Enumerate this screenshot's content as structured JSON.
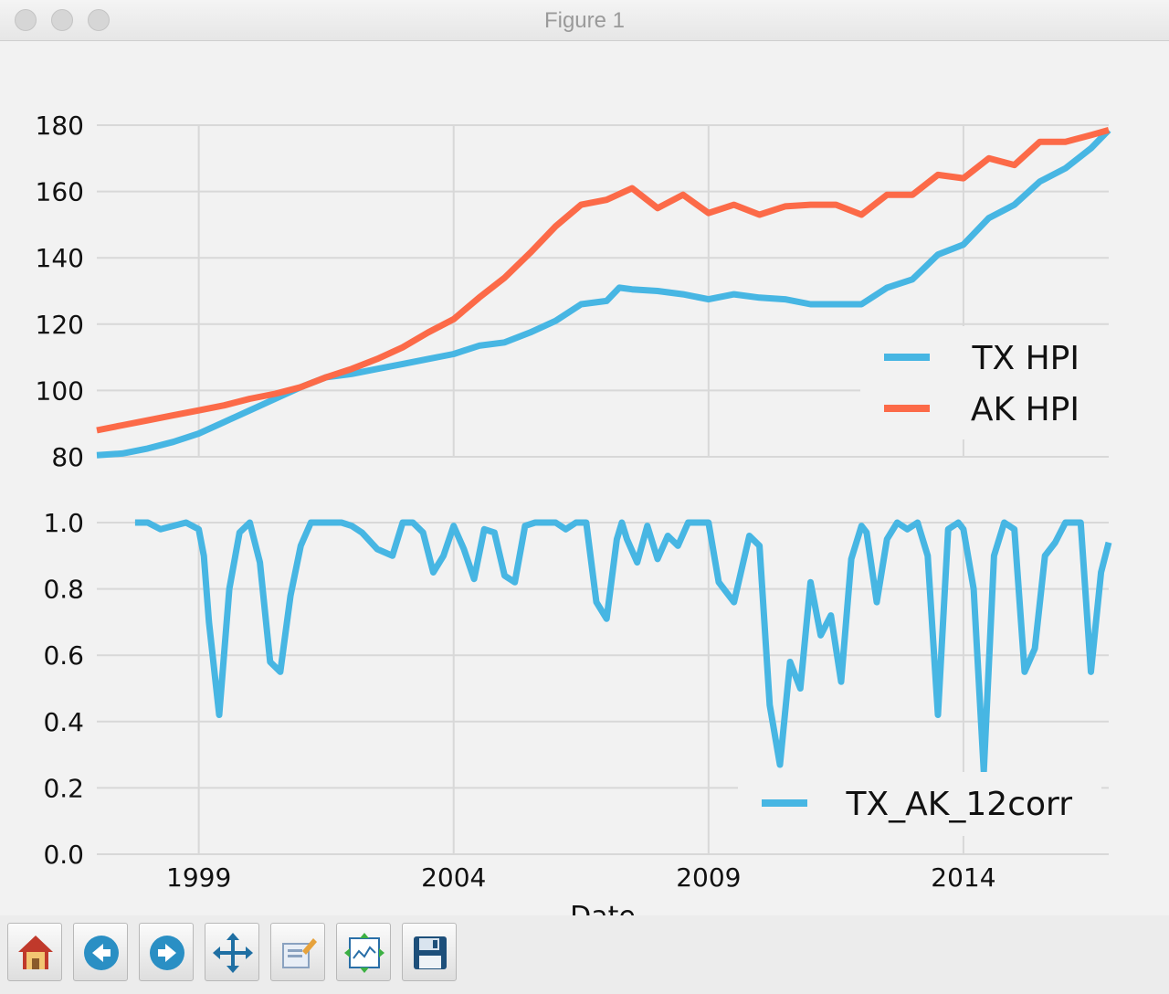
{
  "window": {
    "title": "Figure 1"
  },
  "toolbar": {
    "buttons": [
      {
        "name": "home-button",
        "icon": "home-icon"
      },
      {
        "name": "back-button",
        "icon": "back-arrow-icon"
      },
      {
        "name": "forward-button",
        "icon": "forward-arrow-icon"
      },
      {
        "name": "pan-button",
        "icon": "move-icon"
      },
      {
        "name": "zoom-button",
        "icon": "zoom-rect-icon"
      },
      {
        "name": "configure-subplots-button",
        "icon": "subplots-icon"
      },
      {
        "name": "save-button",
        "icon": "floppy-disk-icon"
      }
    ]
  },
  "chart_data": [
    {
      "type": "line",
      "xlabel": "",
      "ylabel": "",
      "xlim": [
        1997.0,
        2016.85
      ],
      "ylim": [
        80,
        180
      ],
      "yticks": [
        80,
        100,
        120,
        140,
        160,
        180
      ],
      "xticks": [
        1999,
        2004,
        2009,
        2014
      ],
      "grid": true,
      "legend_position": "right",
      "colors": {
        "TX HPI": "#47b6e3",
        "AK HPI": "#fc6a48"
      },
      "series": [
        {
          "name": "TX HPI",
          "x": [
            1997.0,
            1997.5,
            1998.0,
            1998.5,
            1999.0,
            1999.5,
            2000.0,
            2000.5,
            2001.0,
            2001.5,
            2002.0,
            2002.5,
            2003.0,
            2003.5,
            2004.0,
            2004.5,
            2005.0,
            2005.5,
            2006.0,
            2006.5,
            2007.0,
            2007.25,
            2007.5,
            2008.0,
            2008.5,
            2009.0,
            2009.5,
            2010.0,
            2010.5,
            2011.0,
            2011.5,
            2012.0,
            2012.5,
            2013.0,
            2013.5,
            2014.0,
            2014.5,
            2015.0,
            2015.5,
            2016.0,
            2016.5,
            2016.85
          ],
          "values": [
            80.5,
            81,
            82.5,
            84.5,
            87,
            90.5,
            94,
            97.5,
            101,
            104,
            105,
            106.5,
            108,
            109.5,
            111,
            113.5,
            114.5,
            117.5,
            121,
            126,
            127,
            131,
            130.5,
            130,
            129,
            127.5,
            129,
            128,
            127.5,
            126,
            126,
            126,
            131,
            133.5,
            141,
            144,
            152,
            156,
            163,
            167,
            173,
            178.5
          ]
        },
        {
          "name": "AK HPI",
          "x": [
            1997.0,
            1997.5,
            1998.0,
            1998.5,
            1999.0,
            1999.5,
            2000.0,
            2000.5,
            2001.0,
            2001.5,
            2002.0,
            2002.5,
            2003.0,
            2003.5,
            2004.0,
            2004.5,
            2005.0,
            2005.5,
            2006.0,
            2006.5,
            2007.0,
            2007.5,
            2008.0,
            2008.5,
            2009.0,
            2009.5,
            2010.0,
            2010.5,
            2011.0,
            2011.5,
            2012.0,
            2012.5,
            2013.0,
            2013.5,
            2014.0,
            2014.5,
            2015.0,
            2015.5,
            2016.0,
            2016.5,
            2016.85
          ],
          "values": [
            88,
            89.5,
            91,
            92.5,
            94,
            95.5,
            97.5,
            99,
            101,
            104,
            106.5,
            109.5,
            113,
            117.5,
            121.5,
            128,
            134,
            141.5,
            149.5,
            156,
            157.5,
            161,
            155,
            159,
            153.5,
            156,
            153,
            155.5,
            156,
            156,
            153,
            159,
            159,
            165,
            164,
            170,
            168,
            175,
            175,
            177,
            178.5
          ]
        }
      ]
    },
    {
      "type": "line",
      "xlabel": "Date",
      "ylabel": "",
      "xlim": [
        1997.0,
        2016.85
      ],
      "ylim": [
        0.0,
        1.0
      ],
      "yticks": [
        "0.0",
        "0.2",
        "0.4",
        "0.6",
        "0.8",
        "1.0"
      ],
      "xticks": [
        1999,
        2004,
        2009,
        2014
      ],
      "grid": true,
      "legend_position": "bottom-right",
      "colors": {
        "TX_AK_12corr": "#47b6e3"
      },
      "series": [
        {
          "name": "TX_AK_12corr",
          "x": [
            1997.75,
            1998.0,
            1998.25,
            1998.5,
            1998.75,
            1999.0,
            1999.1,
            1999.2,
            1999.4,
            1999.6,
            1999.8,
            2000.0,
            2000.2,
            2000.4,
            2000.6,
            2000.8,
            2001.0,
            2001.2,
            2001.5,
            2001.8,
            2002.0,
            2002.2,
            2002.5,
            2002.8,
            2003.0,
            2003.2,
            2003.4,
            2003.6,
            2003.8,
            2004.0,
            2004.2,
            2004.4,
            2004.6,
            2004.8,
            2005.0,
            2005.2,
            2005.4,
            2005.6,
            2005.8,
            2006.0,
            2006.2,
            2006.4,
            2006.6,
            2006.8,
            2007.0,
            2007.2,
            2007.3,
            2007.4,
            2007.6,
            2007.8,
            2008.0,
            2008.2,
            2008.4,
            2008.6,
            2008.7,
            2008.8,
            2009.0,
            2009.2,
            2009.5,
            2009.8,
            2010.0,
            2010.2,
            2010.4,
            2010.6,
            2010.8,
            2011.0,
            2011.2,
            2011.4,
            2011.6,
            2011.8,
            2012.0,
            2012.1,
            2012.3,
            2012.5,
            2012.7,
            2012.9,
            2013.1,
            2013.3,
            2013.5,
            2013.7,
            2013.9,
            2014.0,
            2014.2,
            2014.4,
            2014.6,
            2014.8,
            2015.0,
            2015.2,
            2015.4,
            2015.6,
            2015.8,
            2016.0,
            2016.1,
            2016.3,
            2016.5,
            2016.7,
            2016.85
          ],
          "values": [
            1.0,
            1.0,
            0.98,
            0.99,
            1.0,
            0.98,
            0.9,
            0.7,
            0.42,
            0.8,
            0.97,
            1.0,
            0.88,
            0.58,
            0.55,
            0.78,
            0.93,
            1.0,
            1.0,
            1.0,
            0.99,
            0.97,
            0.92,
            0.9,
            1.0,
            1.0,
            0.97,
            0.85,
            0.9,
            0.99,
            0.92,
            0.83,
            0.98,
            0.97,
            0.84,
            0.82,
            0.99,
            1.0,
            1.0,
            1.0,
            0.98,
            1.0,
            1.0,
            0.76,
            0.71,
            0.95,
            1.0,
            0.95,
            0.88,
            0.99,
            0.89,
            0.96,
            0.93,
            1.0,
            1.0,
            1.0,
            1.0,
            0.82,
            0.76,
            0.96,
            0.93,
            0.45,
            0.27,
            0.58,
            0.5,
            0.82,
            0.66,
            0.72,
            0.52,
            0.89,
            0.99,
            0.97,
            0.76,
            0.95,
            1.0,
            0.98,
            1.0,
            0.9,
            0.42,
            0.98,
            1.0,
            0.98,
            0.8,
            0.25,
            0.9,
            1.0,
            0.98,
            0.55,
            0.62,
            0.9,
            0.94,
            1.0,
            1.0,
            1.0,
            0.55,
            0.85,
            0.94
          ]
        }
      ]
    }
  ]
}
